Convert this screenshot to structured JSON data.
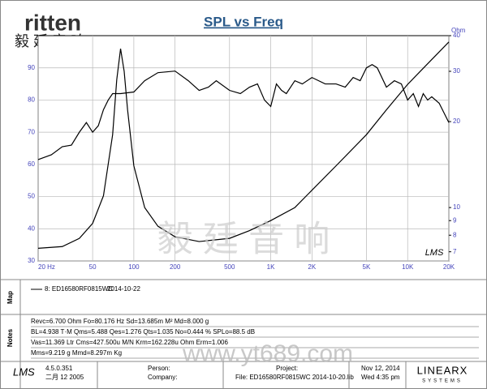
{
  "header": {
    "logo": "ritten",
    "logo_cn": "毅 廷 音 响"
  },
  "chart_data": {
    "type": "line",
    "title": "SPL vs Freq",
    "xscale": "log",
    "xlim": [
      20,
      20000
    ],
    "xticks": [
      {
        "value": 20,
        "label": "20 Hz"
      },
      50,
      100,
      200,
      500,
      {
        "value": 1000,
        "label": "1K"
      },
      {
        "value": 2000,
        "label": "2K"
      },
      {
        "value": 5000,
        "label": "5K"
      },
      {
        "value": 10000,
        "label": "10K"
      },
      {
        "value": 20000,
        "label": "20K"
      }
    ],
    "ylim": [
      30,
      100
    ],
    "yticks": [
      30,
      40,
      50,
      60,
      70,
      80,
      90
    ],
    "y2label": "Ohm",
    "y2scale": "log",
    "y2lim": [
      6.5,
      40
    ],
    "y2ticks": [
      7,
      8,
      9,
      10,
      20,
      30,
      40
    ],
    "grid": true,
    "series": [
      {
        "color": "#000000",
        "x": [
          20,
          25,
          30,
          35,
          40,
          45,
          50,
          55,
          60,
          65,
          70,
          80,
          100,
          120,
          150,
          200,
          250,
          300,
          350,
          400,
          500,
          600,
          700,
          800,
          900,
          1000,
          1100,
          1200,
          1300,
          1500,
          1700,
          2000,
          2500,
          3000,
          3500,
          4000,
          4500,
          5000,
          5500,
          6000,
          7000,
          8000,
          9000,
          10000,
          11000,
          12000,
          13000,
          14000,
          15000,
          17000,
          20000
        ],
        "values": [
          61.5,
          63,
          65.5,
          66,
          70,
          73,
          70,
          72,
          77,
          80,
          82,
          82,
          82.5,
          86,
          88.5,
          89,
          86,
          83,
          84,
          86,
          83,
          82,
          84,
          85,
          80,
          78,
          85,
          83,
          82,
          86,
          85,
          87,
          85,
          85,
          84,
          87,
          86,
          90,
          91,
          90,
          84,
          86,
          85,
          80,
          82,
          78,
          82,
          80,
          81,
          79,
          73
        ]
      },
      {
        "color": "#000000",
        "axis": "y2",
        "x": [
          20,
          30,
          40,
          50,
          60,
          70,
          75,
          80,
          85,
          90,
          100,
          120,
          150,
          200,
          300,
          500,
          700,
          1000,
          1500,
          2000,
          3000,
          5000,
          7000,
          10000,
          15000,
          20000
        ],
        "values": [
          7.2,
          7.3,
          7.8,
          8.8,
          11,
          18,
          28,
          36,
          30,
          22,
          14,
          10,
          8.6,
          7.9,
          7.6,
          7.8,
          8.3,
          9,
          10,
          11.5,
          14,
          18,
          22,
          27,
          33,
          38
        ]
      }
    ]
  },
  "watermark": {
    "cn": "毅 廷 音 响",
    "url": "www.yt689.com",
    "lms": "LMS"
  },
  "legend_panel": {
    "label": "Map",
    "entry": "8: ED16580RF0815WC",
    "date": "2014-10-22"
  },
  "notes": {
    "label": "Notes",
    "lines": [
      "Revc=6.700 Ohm  Fo=80.176 Hz  Sd=13.685m M²  Md=8.000 g",
      "BL=4.938 T·M  Qms=5.488  Qes=1.276  Qts=1.035  No=0.444 %  SPLo=88.5 dB",
      "Vas=11.369 Ltr  Cms=427.500u M/N  Krm=162.228u Ohm  Erm=1.006",
      "Mms=9.219 g  Mmd=8.297m Kg"
    ]
  },
  "footer": {
    "logo": "LMS",
    "version": "4.5.0.351",
    "build": "二月 12 2005",
    "person": "Person:",
    "company": "Company:",
    "project": "Project:",
    "file": "File: ED16580RF0815WC   2014-10-20.lib",
    "date": "Nov 12, 2014",
    "time": "Wed  4:35 pm",
    "brand": "LINEARX",
    "brand_sub": "SYSTEMS"
  }
}
